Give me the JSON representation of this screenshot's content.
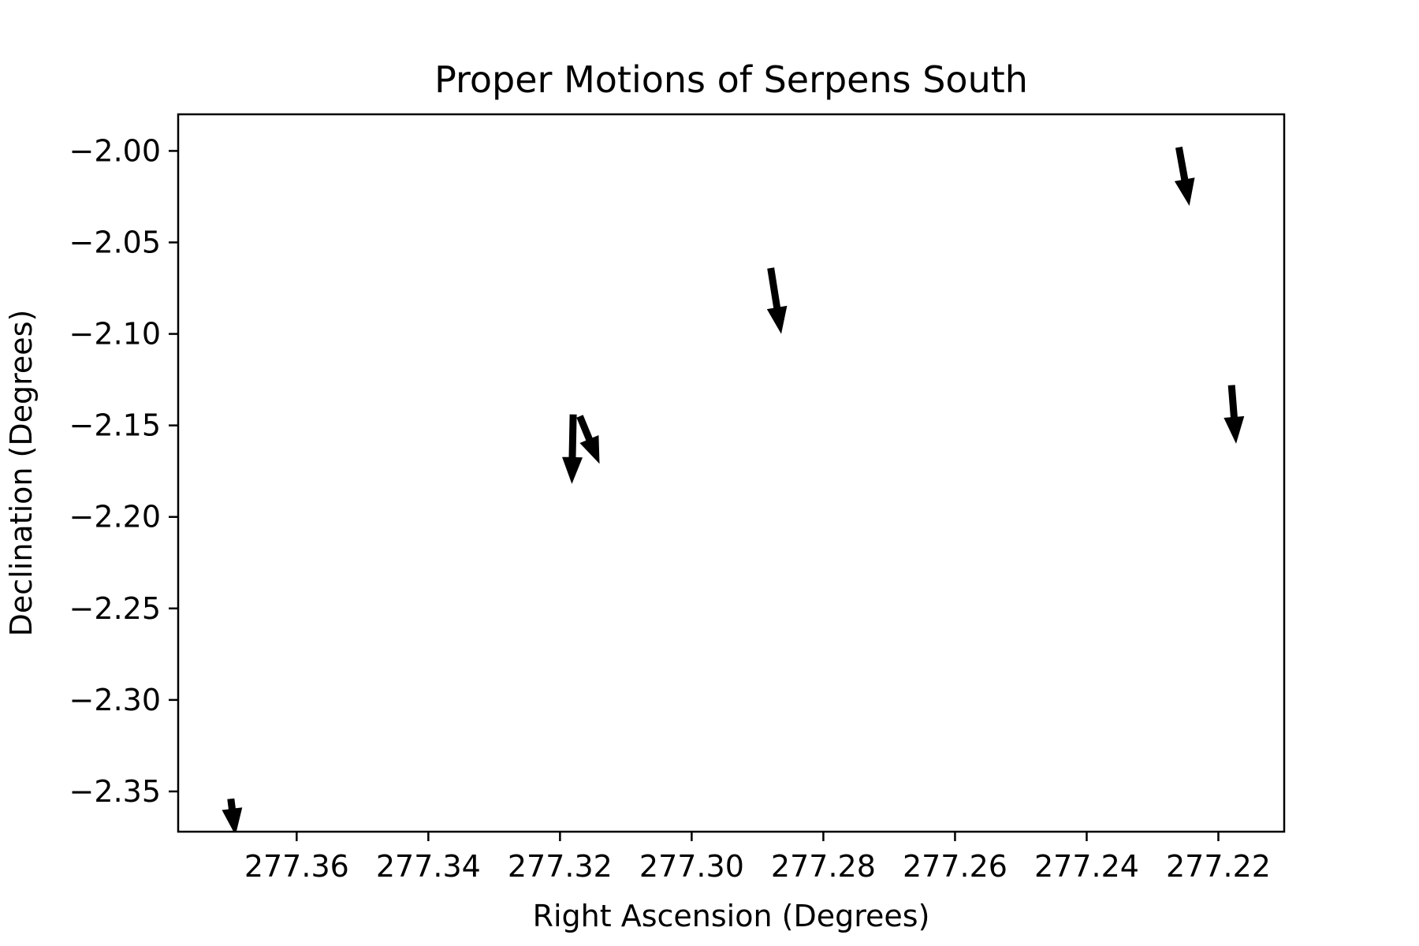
{
  "chart_data": {
    "type": "quiver",
    "title": "Proper Motions of Serpens South",
    "xlabel": "Right Ascension (Degrees)",
    "ylabel": "Declination (Degrees)",
    "xlim": [
      277.378,
      277.21
    ],
    "ylim": [
      -2.372,
      -1.98
    ],
    "x_inverted": true,
    "xticks": [
      277.36,
      277.34,
      277.32,
      277.3,
      277.28,
      277.26,
      277.24,
      277.22
    ],
    "xtick_labels": [
      "277.36",
      "277.34",
      "277.32",
      "277.30",
      "277.28",
      "277.26",
      "277.24",
      "277.22"
    ],
    "yticks": [
      -2.0,
      -2.05,
      -2.1,
      -2.15,
      -2.2,
      -2.25,
      -2.3,
      -2.35
    ],
    "ytick_labels": [
      "−2.00",
      "−2.05",
      "−2.10",
      "−2.15",
      "−2.20",
      "−2.25",
      "−2.30",
      "−2.35"
    ],
    "grid": false,
    "arrow_color": "#000000",
    "arrows": [
      {
        "x": 277.37,
        "y": -2.354,
        "dx": -0.0007,
        "dy": -0.02
      },
      {
        "x": 277.318,
        "y": -2.144,
        "dx": 0.0002,
        "dy": -0.038
      },
      {
        "x": 277.317,
        "y": -2.145,
        "dx": -0.003,
        "dy": -0.026
      },
      {
        "x": 277.288,
        "y": -2.064,
        "dx": -0.0016,
        "dy": -0.036
      },
      {
        "x": 277.226,
        "y": -1.998,
        "dx": -0.0016,
        "dy": -0.032
      },
      {
        "x": 277.218,
        "y": -2.128,
        "dx": -0.0007,
        "dy": -0.032
      }
    ]
  }
}
